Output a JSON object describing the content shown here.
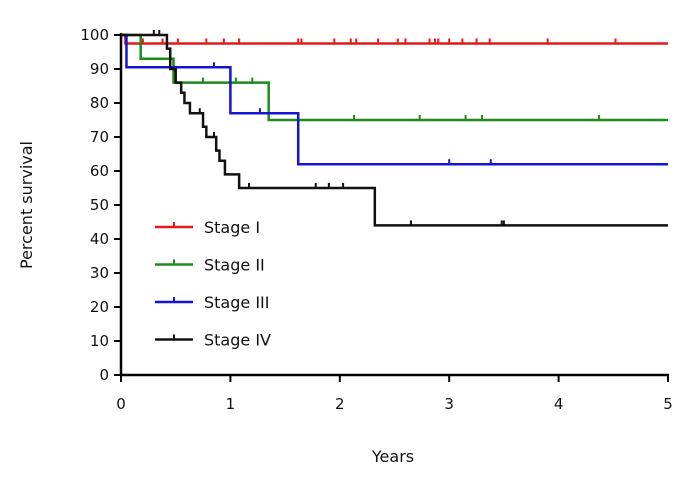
{
  "chart_data": {
    "type": "line",
    "title": "",
    "xlabel": "Years",
    "ylabel": "Percent survival",
    "xlim": [
      0,
      5
    ],
    "ylim": [
      0,
      100
    ],
    "x_ticks": [
      0,
      1,
      2,
      3,
      4,
      5
    ],
    "y_ticks": [
      0,
      10,
      20,
      30,
      40,
      50,
      60,
      70,
      80,
      90,
      100
    ],
    "grid": false,
    "legend_position": "lower-left",
    "series": [
      {
        "name": "Stage I",
        "color": "#e41a1c",
        "steps": [
          [
            0,
            100
          ],
          [
            0.04,
            97.5
          ],
          [
            5,
            97.5
          ]
        ],
        "censored": [
          0.2,
          0.38,
          0.52,
          0.78,
          0.94,
          1.08,
          1.62,
          1.65,
          1.95,
          2.1,
          2.15,
          2.35,
          2.53,
          2.6,
          2.82,
          2.87,
          2.9,
          3.0,
          3.12,
          3.25,
          3.37,
          3.9,
          4.52
        ]
      },
      {
        "name": "Stage II",
        "color": "#1e8a1e",
        "steps": [
          [
            0,
            100
          ],
          [
            0.18,
            93
          ],
          [
            0.48,
            86
          ],
          [
            1.35,
            75
          ],
          [
            5,
            75
          ]
        ],
        "censored": [
          0.75,
          1.05,
          1.2,
          2.13,
          2.73,
          3.15,
          3.3,
          4.37
        ]
      },
      {
        "name": "Stage III",
        "color": "#1414d2",
        "steps": [
          [
            0,
            100
          ],
          [
            0.05,
            90.5
          ],
          [
            0.47,
            90.5
          ],
          [
            1.0,
            77
          ],
          [
            1.62,
            62
          ],
          [
            5,
            62
          ]
        ],
        "censored": [
          0.85,
          1.27,
          3.0,
          3.38
        ]
      },
      {
        "name": "Stage IV",
        "color": "#111111",
        "steps": [
          [
            0,
            100
          ],
          [
            0.42,
            96
          ],
          [
            0.45,
            90
          ],
          [
            0.5,
            86
          ],
          [
            0.55,
            83
          ],
          [
            0.58,
            80
          ],
          [
            0.63,
            77
          ],
          [
            0.75,
            73
          ],
          [
            0.78,
            70
          ],
          [
            0.87,
            66
          ],
          [
            0.9,
            63
          ],
          [
            0.95,
            59
          ],
          [
            1.08,
            55
          ],
          [
            2.32,
            44
          ],
          [
            5,
            44
          ]
        ],
        "censored": [
          0.3,
          0.35,
          0.72,
          0.85,
          1.17,
          1.78,
          1.9,
          2.03,
          2.65,
          3.48,
          3.5
        ]
      }
    ]
  }
}
